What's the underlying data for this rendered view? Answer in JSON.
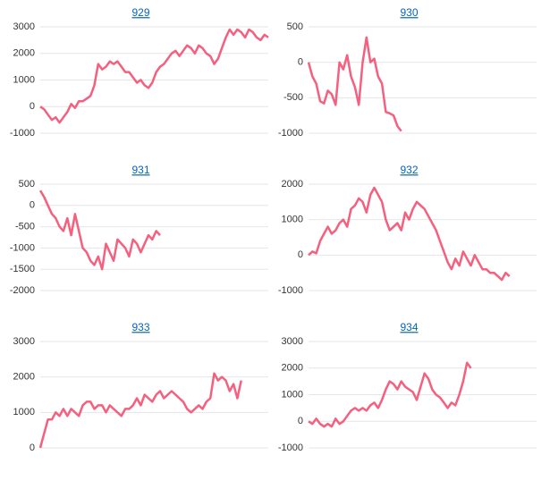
{
  "chart_data": [
    {
      "type": "line",
      "title": "929",
      "color": "#f4607d",
      "grid": true,
      "ylim": [
        -1000,
        3000
      ],
      "yticks": [
        -1000,
        0,
        1000,
        2000,
        3000
      ],
      "values": [
        0,
        -100,
        -300,
        -500,
        -400,
        -600,
        -400,
        -200,
        100,
        -50,
        200,
        200,
        300,
        400,
        800,
        1600,
        1400,
        1500,
        1700,
        1600,
        1700,
        1500,
        1300,
        1300,
        1100,
        900,
        1000,
        800,
        700,
        900,
        1300,
        1500,
        1600,
        1800,
        2000,
        2100,
        1900,
        2100,
        2300,
        2200,
        2000,
        2300,
        2200,
        2000,
        1900,
        1600,
        1800,
        2200,
        2600,
        2900,
        2700,
        2900,
        2800,
        2600,
        2900,
        2800,
        2600,
        2500,
        2700,
        2600
      ]
    },
    {
      "type": "line",
      "title": "930",
      "color": "#f4607d",
      "grid": true,
      "ylim": [
        -1000,
        500
      ],
      "yticks": [
        -1000,
        -500,
        0,
        500
      ],
      "values": [
        0,
        -200,
        -300,
        -550,
        -580,
        -400,
        -450,
        -600,
        0,
        -100,
        100,
        -200,
        -350,
        -600,
        0,
        350,
        0,
        50,
        -200,
        -300,
        -700,
        -720,
        -750,
        -900,
        -970,
        null,
        null,
        null,
        null,
        null,
        null,
        null,
        null,
        null,
        null,
        null,
        null,
        null,
        null,
        null,
        null,
        null,
        null,
        null,
        null,
        null,
        null,
        null,
        null,
        null,
        null,
        null,
        null,
        null,
        null,
        null,
        null,
        null,
        null,
        null
      ]
    },
    {
      "type": "line",
      "title": "931",
      "color": "#f4607d",
      "grid": true,
      "ylim": [
        -2000,
        500
      ],
      "yticks": [
        -2000,
        -1500,
        -1000,
        -500,
        0,
        500
      ],
      "values": [
        350,
        200,
        0,
        -200,
        -300,
        -500,
        -600,
        -300,
        -700,
        -200,
        -600,
        -1000,
        -1100,
        -1300,
        -1400,
        -1200,
        -1500,
        -900,
        -1100,
        -1300,
        -800,
        -900,
        -1000,
        -1200,
        -800,
        -900,
        -1100,
        -900,
        -700,
        -800,
        -600,
        -700,
        null,
        null,
        null,
        null,
        null,
        null,
        null,
        null,
        null,
        null,
        null,
        null,
        null,
        null,
        null,
        null,
        null,
        null,
        null,
        null,
        null,
        null,
        null,
        null,
        null,
        null,
        null,
        null
      ]
    },
    {
      "type": "line",
      "title": "932",
      "color": "#f4607d",
      "grid": true,
      "ylim": [
        -1000,
        2000
      ],
      "yticks": [
        -1000,
        0,
        1000,
        2000
      ],
      "values": [
        0,
        100,
        50,
        400,
        600,
        800,
        600,
        700,
        900,
        1000,
        800,
        1300,
        1400,
        1600,
        1500,
        1200,
        1700,
        1900,
        1700,
        1500,
        1000,
        700,
        800,
        900,
        700,
        1200,
        1000,
        1300,
        1500,
        1400,
        1300,
        1100,
        900,
        700,
        400,
        100,
        -200,
        -400,
        -100,
        -300,
        100,
        -100,
        -300,
        0,
        -200,
        -400,
        -400,
        -500,
        -500,
        -600,
        -700,
        -500,
        -600,
        null,
        null,
        null,
        null,
        null,
        null,
        null
      ]
    },
    {
      "type": "line",
      "title": "933",
      "color": "#f4607d",
      "grid": true,
      "ylim": [
        0,
        3000
      ],
      "yticks": [
        0,
        1000,
        2000,
        3000
      ],
      "values": [
        0,
        400,
        800,
        800,
        1000,
        900,
        1100,
        900,
        1100,
        1000,
        900,
        1200,
        1300,
        1300,
        1100,
        1200,
        1200,
        1000,
        1200,
        1100,
        1000,
        900,
        1100,
        1100,
        1200,
        1400,
        1200,
        1500,
        1400,
        1300,
        1500,
        1600,
        1400,
        1500,
        1600,
        1500,
        1400,
        1300,
        1100,
        1000,
        1100,
        1200,
        1100,
        1300,
        1400,
        2100,
        1900,
        2000,
        1900,
        1600,
        1800,
        1400,
        1900,
        null,
        null,
        null,
        null,
        null,
        null,
        null
      ]
    },
    {
      "type": "line",
      "title": "934",
      "color": "#f4607d",
      "grid": true,
      "ylim": [
        -1000,
        3000
      ],
      "yticks": [
        -1000,
        0,
        1000,
        2000,
        3000
      ],
      "values": [
        0,
        -100,
        100,
        -100,
        -200,
        -100,
        -200,
        100,
        -100,
        0,
        200,
        400,
        500,
        400,
        500,
        400,
        600,
        700,
        500,
        800,
        1200,
        1500,
        1400,
        1200,
        1500,
        1300,
        1200,
        1100,
        800,
        1300,
        1800,
        1600,
        1200,
        1000,
        900,
        700,
        500,
        700,
        600,
        1000,
        1500,
        2200,
        2000,
        null,
        null,
        null,
        null,
        null,
        null,
        null,
        null,
        null,
        null,
        null,
        null,
        null,
        null,
        null,
        null,
        null
      ]
    }
  ]
}
